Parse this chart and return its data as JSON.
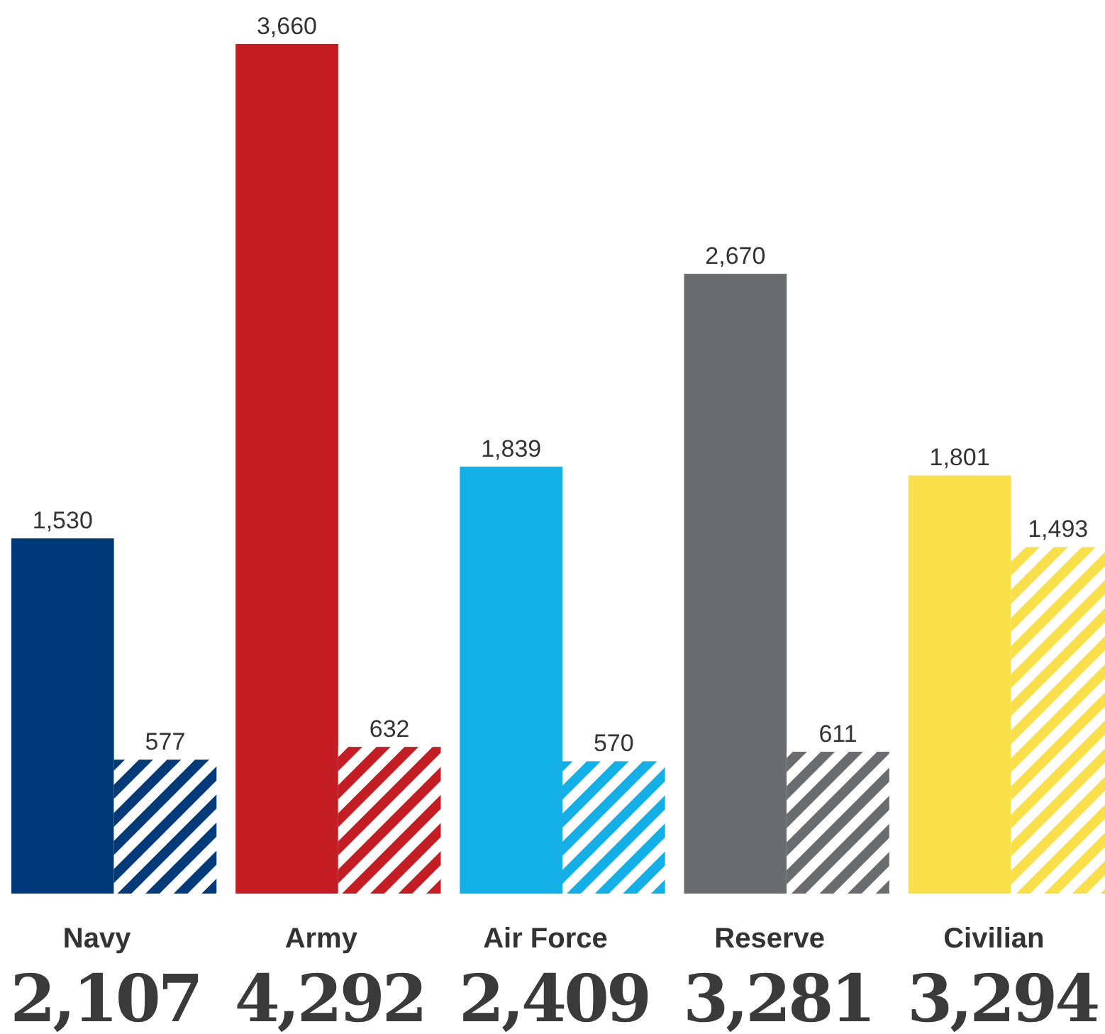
{
  "chart_data": {
    "type": "bar",
    "categories": [
      "Navy",
      "Army",
      "Air Force",
      "Reserve",
      "Civilian"
    ],
    "series": [
      {
        "colors": [
          "#003a78",
          "#c41e24",
          "#12b0e6",
          "#6b6c70",
          "#f9e04a"
        ],
        "values": [
          1530,
          3660,
          1839,
          2670,
          1801
        ],
        "value_labels": [
          "1,530",
          "3,660",
          "1,839",
          "2,670",
          "1,801"
        ]
      },
      {
        "colors": [
          "#003a78",
          "#c41e24",
          "#12b0e6",
          "#6b6c70",
          "#f9e04a"
        ],
        "values": [
          577,
          632,
          570,
          611,
          1493
        ],
        "value_labels": [
          "577",
          "632",
          "570",
          "611",
          "1,493"
        ]
      }
    ],
    "totals": [
      "2,107",
      "4,292",
      "2,409",
      "3,281",
      "3,294"
    ]
  }
}
